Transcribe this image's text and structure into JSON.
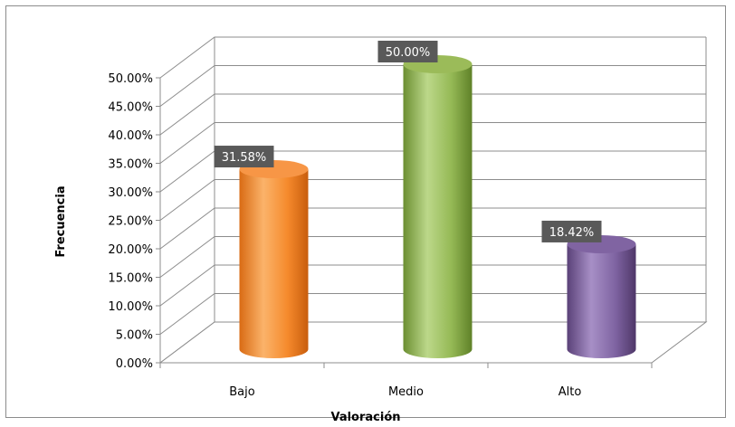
{
  "chart_data": {
    "type": "bar",
    "style": "3d-cylinder",
    "categories": [
      "Bajo",
      "Medio",
      "Alto"
    ],
    "values": [
      31.58,
      50.0,
      18.42
    ],
    "data_labels": [
      "31.58%",
      "50.00%",
      "18.42%"
    ],
    "colors": [
      "#f79646",
      "#9bbb59",
      "#8064a2"
    ],
    "title": "",
    "xlabel": "Valoración",
    "ylabel": "Frecuencia",
    "ylim": [
      0,
      50
    ],
    "y_ticks": [
      "0.00%",
      "5.00%",
      "10.00%",
      "15.00%",
      "20.00%",
      "25.00%",
      "30.00%",
      "35.00%",
      "40.00%",
      "45.00%",
      "50.00%"
    ],
    "grid": true,
    "legend": "none"
  }
}
